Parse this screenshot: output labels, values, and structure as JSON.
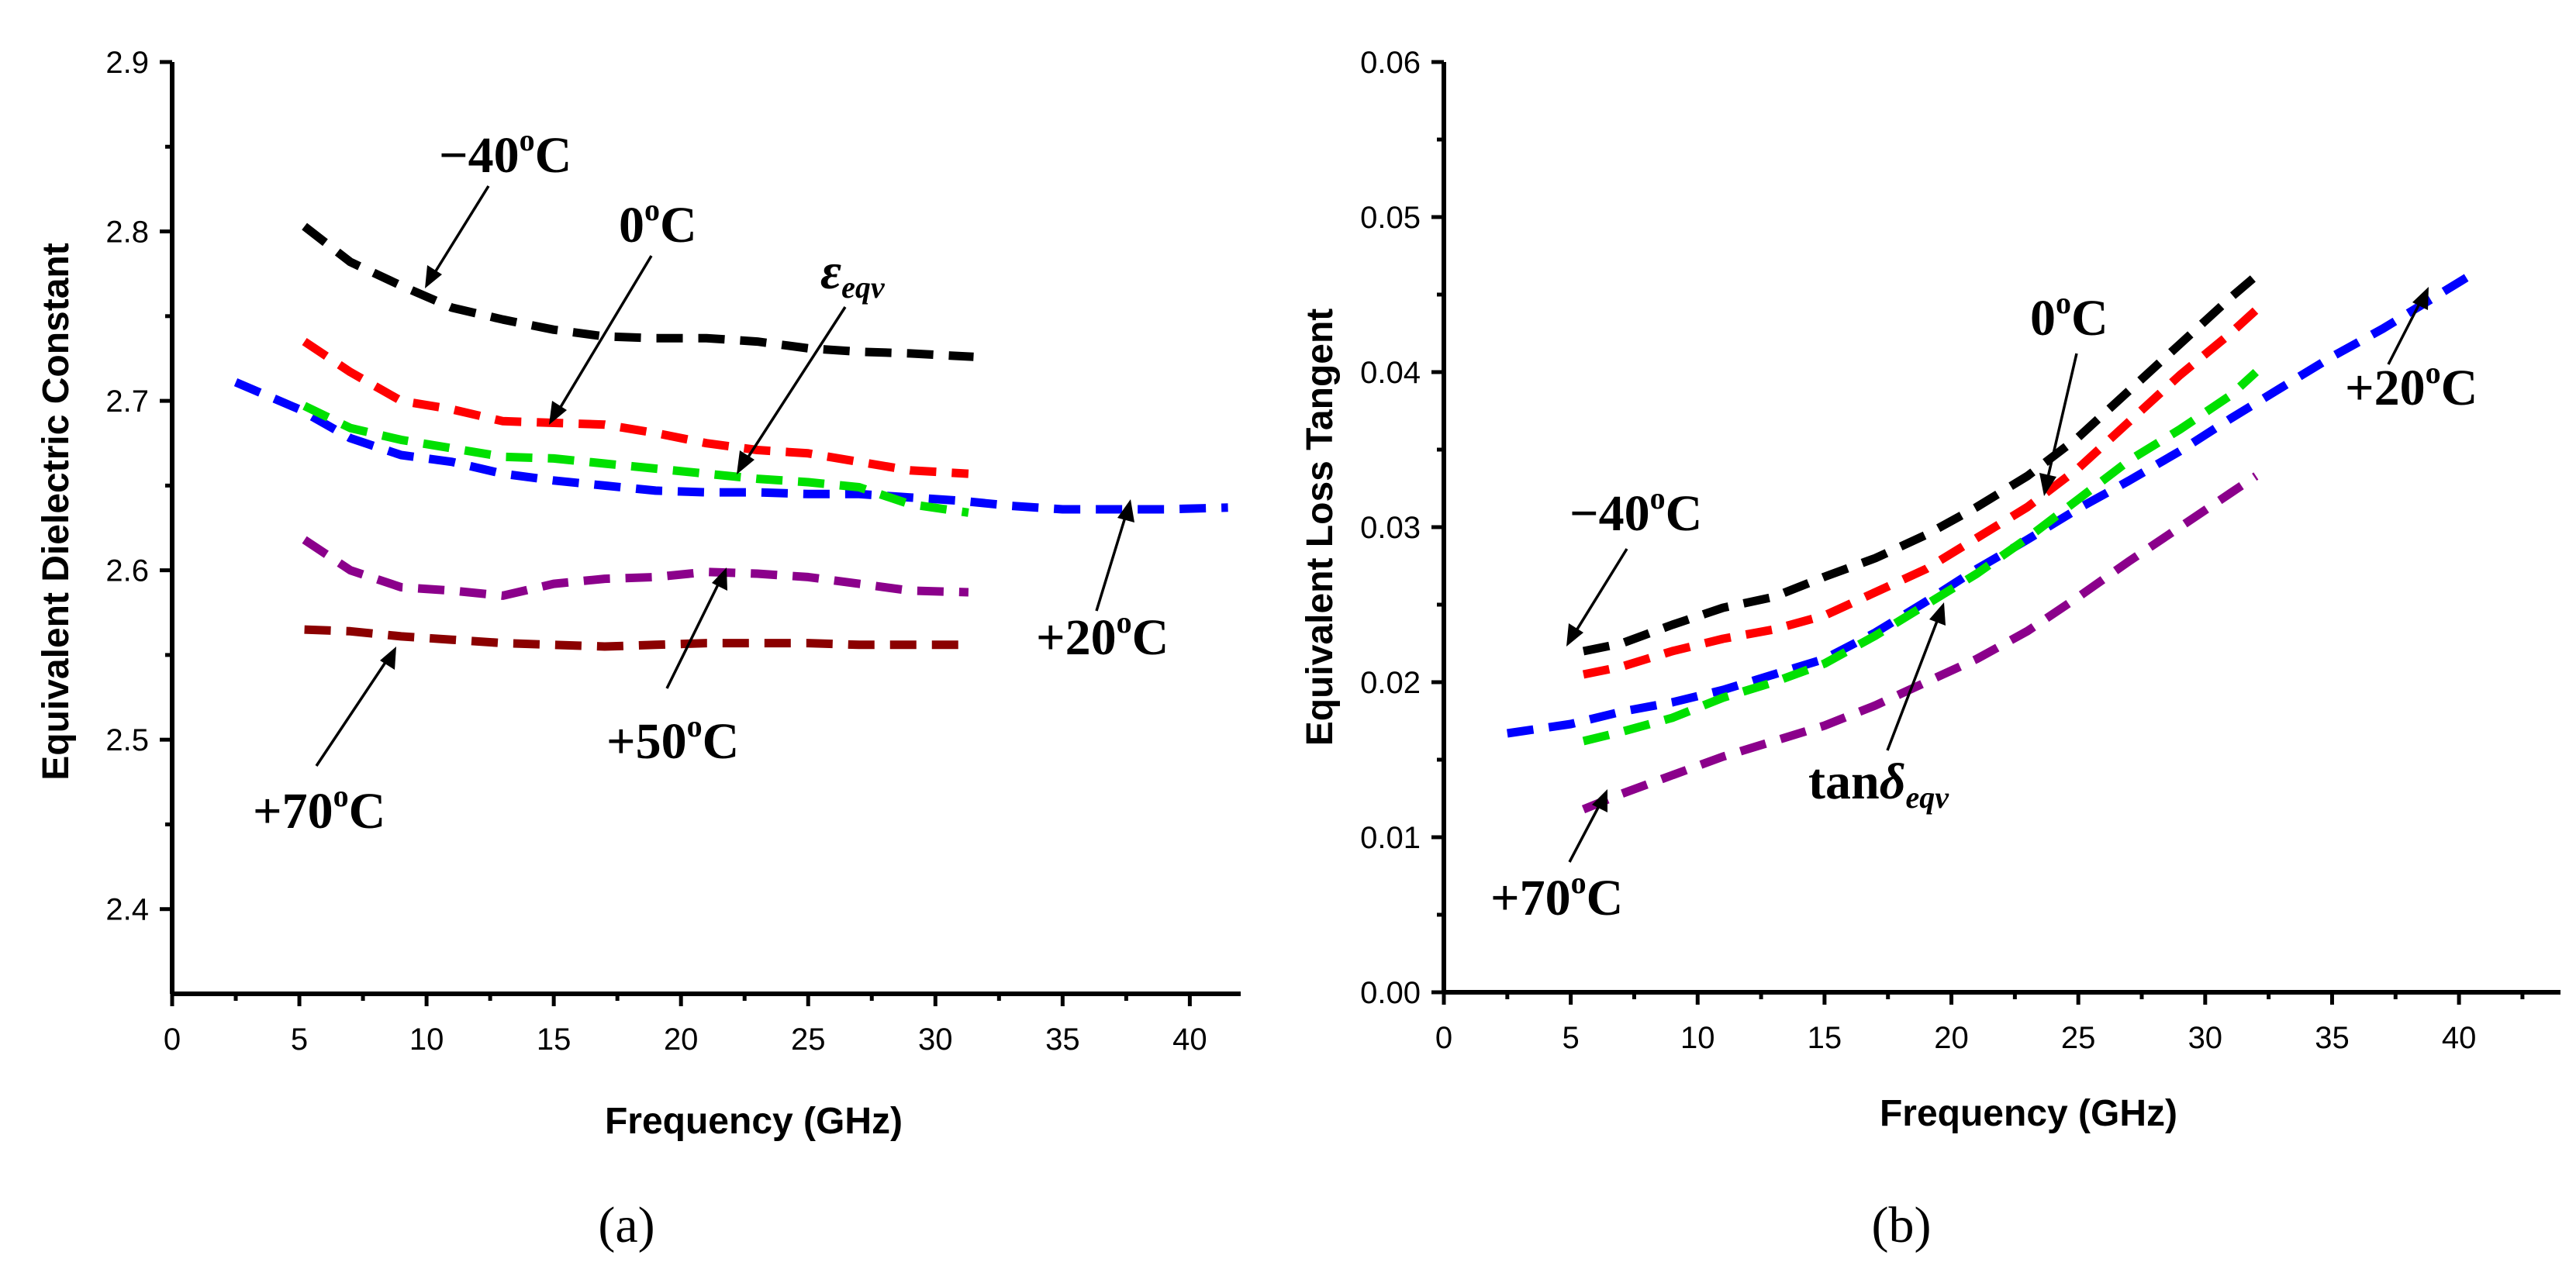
{
  "chart_data": [
    {
      "type": "line",
      "panel_label": "(a)",
      "xlabel": "Frequency (GHz)",
      "ylabel": "Equivalent Dielectric Constant",
      "xlim": [
        0,
        42
      ],
      "ylim": [
        2.35,
        2.9
      ],
      "xticks": [
        0,
        5,
        10,
        15,
        20,
        25,
        30,
        35,
        40
      ],
      "yticks": [
        2.4,
        2.5,
        2.6,
        2.7,
        2.8,
        2.9
      ],
      "xtick_labels": [
        "0",
        "5",
        "10",
        "15",
        "20",
        "25",
        "30",
        "35",
        "40"
      ],
      "ytick_labels": [
        "2.4",
        "2.5",
        "2.6",
        "2.7",
        "2.8",
        "2.9"
      ],
      "series": [
        {
          "name": "-40oC",
          "color": "#000000",
          "x": [
            5.2,
            7,
            9,
            11,
            13,
            15,
            17,
            19,
            21,
            23,
            25,
            27,
            29,
            31.5
          ],
          "y": [
            2.803,
            2.782,
            2.768,
            2.755,
            2.748,
            2.742,
            2.738,
            2.737,
            2.737,
            2.735,
            2.731,
            2.729,
            2.728,
            2.726
          ]
        },
        {
          "name": "0oC",
          "color": "#ff0000",
          "x": [
            5.2,
            7,
            9,
            11,
            13,
            15,
            17,
            19,
            21,
            23,
            25,
            27,
            29,
            31.3
          ],
          "y": [
            2.735,
            2.717,
            2.7,
            2.695,
            2.688,
            2.687,
            2.686,
            2.681,
            2.675,
            2.671,
            2.669,
            2.664,
            2.659,
            2.657
          ]
        },
        {
          "name": "+20oC",
          "color": "#0000ff",
          "x": [
            2.5,
            5,
            7,
            9,
            11,
            13,
            15,
            17,
            19,
            21,
            23,
            25,
            27,
            29,
            31,
            33,
            35,
            37,
            39,
            41.5
          ],
          "y": [
            2.711,
            2.695,
            2.678,
            2.668,
            2.664,
            2.657,
            2.653,
            2.65,
            2.647,
            2.646,
            2.646,
            2.645,
            2.645,
            2.643,
            2.641,
            2.638,
            2.636,
            2.636,
            2.636,
            2.637
          ]
        },
        {
          "name": "green",
          "color": "#00e000",
          "x": [
            5.2,
            7,
            9,
            11,
            13,
            15,
            17,
            19,
            21,
            23,
            25,
            27,
            29,
            31.3
          ],
          "y": [
            2.697,
            2.684,
            2.677,
            2.672,
            2.667,
            2.666,
            2.663,
            2.66,
            2.657,
            2.654,
            2.652,
            2.649,
            2.639,
            2.634
          ]
        },
        {
          "name": "+50oC",
          "color": "#8b008b",
          "x": [
            5.2,
            7,
            9,
            11,
            13,
            15,
            17,
            19,
            21,
            23,
            25,
            27,
            29,
            31.3
          ],
          "y": [
            2.618,
            2.6,
            2.59,
            2.588,
            2.585,
            2.592,
            2.595,
            2.596,
            2.599,
            2.598,
            2.596,
            2.592,
            2.588,
            2.587
          ]
        },
        {
          "name": "+70oC",
          "color": "#8b0000",
          "x": [
            5.2,
            7,
            9,
            11,
            13,
            15,
            17,
            19,
            21,
            23,
            25,
            27,
            29,
            31.3
          ],
          "y": [
            2.565,
            2.564,
            2.561,
            2.559,
            2.557,
            2.556,
            2.555,
            2.556,
            2.557,
            2.557,
            2.557,
            2.556,
            2.556,
            2.556
          ]
        }
      ],
      "annotations": [
        {
          "main": "−40",
          "sup": "o",
          "tail": "C"
        },
        {
          "main": "0",
          "sup": "o",
          "tail": "C"
        },
        {
          "main": "ε",
          "sub": "eqv"
        },
        {
          "main": "+20",
          "sup": "o",
          "tail": "C"
        },
        {
          "main": "+50",
          "sup": "o",
          "tail": "C"
        },
        {
          "main": "+70",
          "sup": "o",
          "tail": "C"
        }
      ]
    },
    {
      "type": "line",
      "panel_label": "(b)",
      "xlabel": "Frequency (GHz)",
      "ylabel": "Equivalent Loss Tangent",
      "xlim": [
        0,
        44
      ],
      "ylim": [
        0.0,
        0.06
      ],
      "xticks": [
        0,
        5,
        10,
        15,
        20,
        25,
        30,
        35,
        40
      ],
      "yticks": [
        0.0,
        0.01,
        0.02,
        0.03,
        0.04,
        0.05,
        0.06
      ],
      "xtick_labels": [
        "0",
        "5",
        "10",
        "15",
        "20",
        "25",
        "30",
        "35",
        "40"
      ],
      "ytick_labels": [
        "0.00",
        "0.01",
        "0.02",
        "0.03",
        "0.04",
        "0.05",
        "0.06"
      ],
      "series": [
        {
          "name": "-40oC",
          "color": "#000000",
          "x": [
            5.5,
            7,
            9,
            11,
            13,
            15,
            17,
            19,
            21,
            23,
            25,
            27,
            29,
            31,
            32
          ],
          "y": [
            0.022,
            0.0225,
            0.0237,
            0.0248,
            0.0255,
            0.0268,
            0.028,
            0.0295,
            0.0313,
            0.0333,
            0.0358,
            0.0388,
            0.0418,
            0.0448,
            0.0462
          ]
        },
        {
          "name": "0oC",
          "color": "#ff0000",
          "x": [
            5.5,
            7,
            9,
            11,
            13,
            15,
            17,
            19,
            21,
            23,
            25,
            27,
            29,
            31,
            32
          ],
          "y": [
            0.0205,
            0.021,
            0.022,
            0.0228,
            0.0234,
            0.0243,
            0.0258,
            0.0273,
            0.0293,
            0.0313,
            0.0338,
            0.0368,
            0.0398,
            0.0425,
            0.044
          ]
        },
        {
          "name": "+20oC",
          "color": "#0000ff",
          "x": [
            2.5,
            5,
            7,
            9,
            11,
            13,
            15,
            17,
            19,
            21,
            23,
            25,
            27,
            29,
            31,
            33,
            35,
            37,
            39,
            40.5
          ],
          "y": [
            0.0167,
            0.0173,
            0.0181,
            0.0187,
            0.0195,
            0.0205,
            0.0215,
            0.0232,
            0.0252,
            0.0273,
            0.0292,
            0.0312,
            0.033,
            0.0349,
            0.037,
            0.039,
            0.041,
            0.0428,
            0.0448,
            0.0463
          ]
        },
        {
          "name": "green",
          "color": "#00e000",
          "x": [
            5.5,
            7,
            9,
            11,
            13,
            15,
            17,
            19,
            21,
            23,
            25,
            27,
            29,
            31,
            32
          ],
          "y": [
            0.0162,
            0.0168,
            0.0177,
            0.019,
            0.02,
            0.0212,
            0.023,
            0.025,
            0.027,
            0.0293,
            0.0318,
            0.0343,
            0.0363,
            0.0385,
            0.04
          ]
        },
        {
          "name": "+70oC",
          "color": "#8b008b",
          "x": [
            5.5,
            7,
            9,
            11,
            13,
            15,
            17,
            19,
            21,
            23,
            25,
            27,
            29,
            31,
            32
          ],
          "y": [
            0.0118,
            0.0128,
            0.014,
            0.0152,
            0.0162,
            0.0172,
            0.0185,
            0.02,
            0.0215,
            0.0233,
            0.0255,
            0.0278,
            0.03,
            0.0322,
            0.0333
          ]
        }
      ],
      "annotations": [
        {
          "main": "−40",
          "sup": "o",
          "tail": "C"
        },
        {
          "main": "0",
          "sup": "o",
          "tail": "C"
        },
        {
          "main": "+20",
          "sup": "o",
          "tail": "C"
        },
        {
          "main": "tan",
          "greek": "δ",
          "sub": "eqv"
        },
        {
          "main": "+70",
          "sup": "o",
          "tail": "C"
        }
      ]
    }
  ]
}
